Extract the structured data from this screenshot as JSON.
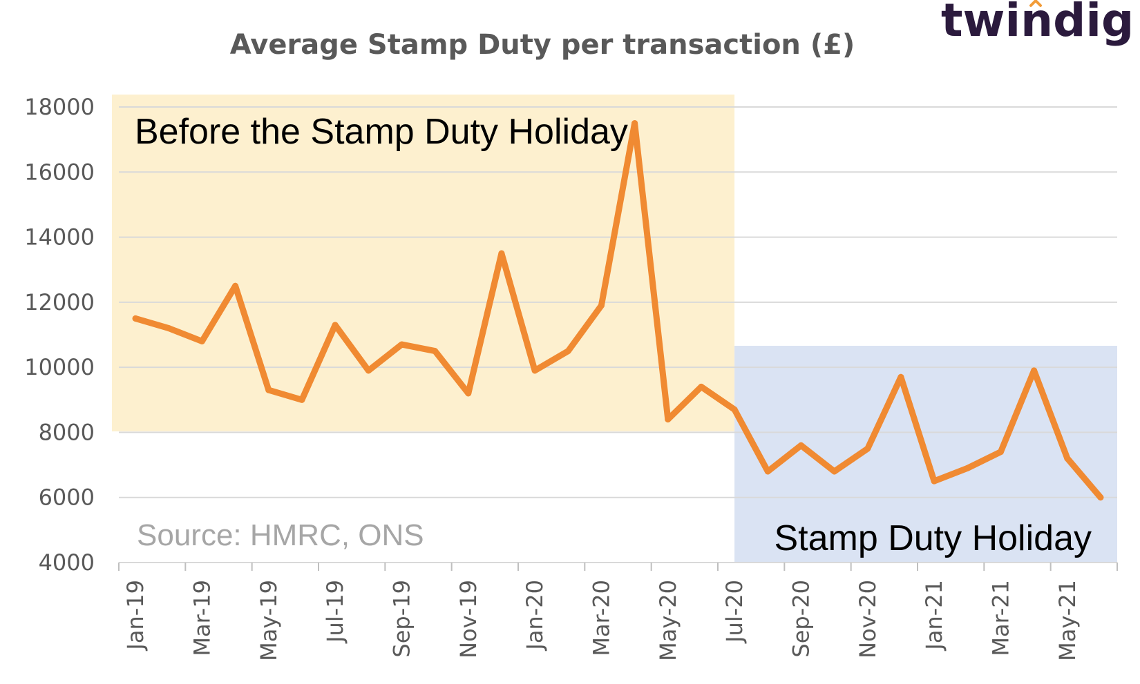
{
  "brand": {
    "logo_text": "twindig",
    "logo_color": "#2b1a3d",
    "logo_accent": "#f29c38"
  },
  "chart_data": {
    "type": "line",
    "title": "Average Stamp Duty per transaction (£)",
    "xlabel": "",
    "ylabel": "",
    "ylim": [
      4000,
      18000
    ],
    "yticks": [
      4000,
      6000,
      8000,
      10000,
      12000,
      14000,
      16000,
      18000
    ],
    "grid": true,
    "x": [
      "Jan-19",
      "Feb-19",
      "Mar-19",
      "Apr-19",
      "May-19",
      "Jun-19",
      "Jul-19",
      "Aug-19",
      "Sep-19",
      "Oct-19",
      "Nov-19",
      "Dec-19",
      "Jan-20",
      "Feb-20",
      "Mar-20",
      "Apr-20",
      "May-20",
      "Jun-20",
      "Jul-20",
      "Aug-20",
      "Sep-20",
      "Oct-20",
      "Nov-20",
      "Dec-20",
      "Jan-21",
      "Feb-21",
      "Mar-21",
      "Apr-21",
      "May-21",
      "Jun-21"
    ],
    "xtick_labels": [
      "Jan-19",
      "Mar-19",
      "May-19",
      "Jul-19",
      "Sep-19",
      "Nov-19",
      "Jan-20",
      "Mar-20",
      "May-20",
      "Jul-20",
      "Sep-20",
      "Nov-20",
      "Jan-21",
      "Mar-21",
      "May-21"
    ],
    "series": [
      {
        "color": "#f08a32",
        "values": [
          11500,
          11200,
          10800,
          12500,
          9300,
          9000,
          11300,
          9900,
          10700,
          10500,
          9200,
          13500,
          9900,
          10500,
          11900,
          17500,
          8400,
          9400,
          8700,
          6800,
          7600,
          6800,
          7500,
          9700,
          6500,
          6900,
          7400,
          9900,
          7200,
          6000
        ]
      }
    ],
    "regions": [
      {
        "label": "Before the Stamp Duty Holiday",
        "from": "Jan-19",
        "to": "Jul-20",
        "color": "#fdf0cf"
      },
      {
        "label": "Stamp Duty Holiday",
        "from": "Jul-20",
        "to": "Jun-21",
        "color": "#dae3f3"
      }
    ],
    "source": "Source: HMRC, ONS"
  }
}
